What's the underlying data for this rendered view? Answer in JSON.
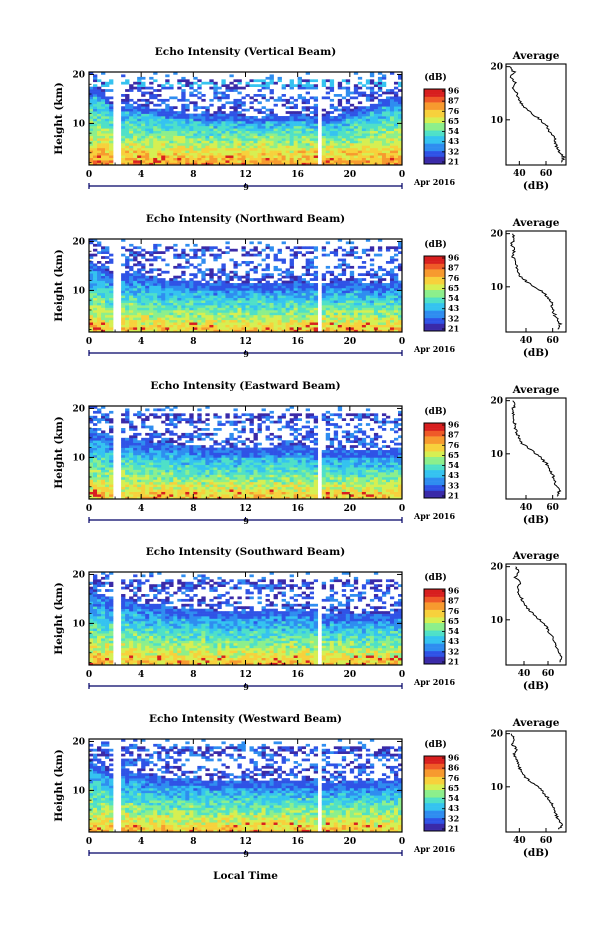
{
  "figure": {
    "xlabel": "Local Time",
    "date_label": "Apr 2016",
    "day_label": "9",
    "ylabel": "Height (km)",
    "colorbar_unit": "(dB)",
    "profile_title": "Average",
    "profile_xlabel": "(dB)"
  },
  "colors": {
    "colormap": [
      "#3a2aa8",
      "#2f53e6",
      "#2f8df0",
      "#35c3f0",
      "#4fe0c8",
      "#8cef8c",
      "#d6ef52",
      "#f7d13c",
      "#f79a2f",
      "#ef5a28",
      "#d81f1f"
    ],
    "axis": "#000000",
    "timeline": "#000066"
  },
  "chart_data": [
    {
      "type": "heatmap",
      "title": "Echo Intensity (Vertical Beam)",
      "xlabel": "Local Time",
      "ylabel": "Height (km)",
      "x_ticks": [
        "0",
        "4",
        "8",
        "12",
        "16",
        "20",
        "0"
      ],
      "y_ticks": [
        "10",
        "20"
      ],
      "xlim": [
        0,
        24
      ],
      "ylim": [
        1.5,
        20.5
      ],
      "colorbar": {
        "label": "(dB)",
        "ticks": [
          "96",
          "87",
          "76",
          "65",
          "54",
          "43",
          "32",
          "21"
        ],
        "range": [
          21,
          96
        ]
      },
      "data_gaps_hours": [
        [
          1.7,
          2.4
        ],
        [
          5.7,
          5.95
        ],
        [
          16.5,
          16.75
        ],
        [
          17.45,
          17.9
        ]
      ],
      "cloud_top_km": [
        17,
        17,
        13,
        14,
        13.5,
        13,
        12.5,
        12.5,
        12,
        11.8,
        11.5,
        12,
        11.5,
        11,
        12,
        11.5,
        12,
        11.5,
        11,
        11.5,
        12.5,
        13.5,
        14,
        15,
        15.5
      ],
      "profile": {
        "title": "Average",
        "xlabel": "(dB)",
        "xticks": [
          "40",
          "60"
        ],
        "yticks": [
          "10",
          "20"
        ],
        "xlim": [
          30,
          75
        ],
        "height_km": [
          2,
          3,
          4,
          5,
          6,
          7,
          8,
          9,
          10,
          11,
          12,
          13,
          14,
          15,
          16,
          17,
          18,
          19,
          20
        ],
        "value_db": [
          72,
          73,
          70,
          68,
          67,
          66,
          62,
          60,
          56,
          50,
          45,
          42,
          40,
          38,
          35,
          37,
          34,
          36,
          33
        ]
      }
    },
    {
      "type": "heatmap",
      "title": "Echo Intensity (Northward Beam)",
      "xlabel": "Local Time",
      "ylabel": "Height (km)",
      "x_ticks": [
        "0",
        "4",
        "8",
        "12",
        "16",
        "20",
        "0"
      ],
      "y_ticks": [
        "10",
        "20"
      ],
      "xlim": [
        0,
        24
      ],
      "ylim": [
        1.5,
        20.5
      ],
      "colorbar": {
        "label": "(dB)",
        "ticks": [
          "96",
          "87",
          "76",
          "65",
          "54",
          "43",
          "32",
          "21"
        ],
        "range": [
          21,
          96
        ]
      },
      "data_gaps_hours": [
        [
          1.7,
          2.4
        ],
        [
          5.7,
          5.95
        ],
        [
          16.5,
          16.75
        ],
        [
          17.45,
          17.9
        ]
      ],
      "cloud_top_km": [
        16,
        15,
        13,
        13.5,
        13,
        12.5,
        12,
        12,
        12,
        11.5,
        11.5,
        11.5,
        11.5,
        11.5,
        11.5,
        11.5,
        11.8,
        11.5,
        11.5,
        11.8,
        12,
        11.5,
        11.5,
        11.5,
        12
      ],
      "profile": {
        "title": "Average",
        "xlabel": "(dB)",
        "xticks": [
          "40",
          "60"
        ],
        "yticks": [
          "10",
          "20"
        ],
        "xlim": [
          25,
          70
        ],
        "height_km": [
          2,
          3,
          4,
          5,
          6,
          7,
          8,
          9,
          10,
          11,
          12,
          13,
          14,
          15,
          16,
          17,
          18,
          19,
          20
        ],
        "value_db": [
          64,
          66,
          63,
          61,
          60,
          59,
          56,
          53,
          47,
          40,
          36,
          34,
          33,
          31,
          30,
          31,
          29,
          31,
          30
        ]
      }
    },
    {
      "type": "heatmap",
      "title": "Echo Intensity (Eastward Beam)",
      "xlabel": "Local Time",
      "ylabel": "Height (km)",
      "x_ticks": [
        "0",
        "4",
        "8",
        "12",
        "16",
        "20",
        "0"
      ],
      "y_ticks": [
        "10",
        "20"
      ],
      "xlim": [
        0,
        24
      ],
      "ylim": [
        1.5,
        20.5
      ],
      "colorbar": {
        "label": "(dB)",
        "ticks": [
          "96",
          "87",
          "76",
          "65",
          "54",
          "43",
          "33",
          "21"
        ],
        "range": [
          21,
          96
        ]
      },
      "data_gaps_hours": [
        [
          1.7,
          2.4
        ],
        [
          5.7,
          5.95
        ],
        [
          16.5,
          16.75
        ],
        [
          17.45,
          17.9
        ]
      ],
      "cloud_top_km": [
        16,
        15,
        14,
        14,
        13.5,
        13,
        13,
        12.5,
        12.5,
        12,
        12,
        12,
        12,
        12,
        12,
        12,
        12.5,
        12,
        11.5,
        11.5,
        11.5,
        11.5,
        11.5,
        11.5,
        12
      ],
      "profile": {
        "title": "Average",
        "xlabel": "(dB)",
        "xticks": [
          "40",
          "60"
        ],
        "yticks": [
          "10",
          "20"
        ],
        "xlim": [
          25,
          70
        ],
        "height_km": [
          2,
          3,
          4,
          5,
          6,
          7,
          8,
          9,
          10,
          11,
          12,
          13,
          14,
          15,
          16,
          17,
          18,
          19,
          20
        ],
        "value_db": [
          64,
          65,
          63,
          61,
          60,
          58,
          56,
          52,
          48,
          42,
          37,
          35,
          33,
          32,
          31,
          31,
          30,
          31,
          30
        ]
      }
    },
    {
      "type": "heatmap",
      "title": "Echo Intensity (Southward Beam)",
      "xlabel": "Local Time",
      "ylabel": "Height (km)",
      "x_ticks": [
        "0",
        "4",
        "8",
        "12",
        "16",
        "20",
        "0"
      ],
      "y_ticks": [
        "10",
        "20"
      ],
      "xlim": [
        0,
        24
      ],
      "ylim": [
        1.5,
        20.5
      ],
      "colorbar": {
        "label": "(dB)",
        "ticks": [
          "96",
          "87",
          "76",
          "65",
          "54",
          "43",
          "32",
          "21"
        ],
        "range": [
          21,
          96
        ]
      },
      "data_gaps_hours": [
        [
          1.7,
          2.4
        ],
        [
          5.7,
          5.95
        ],
        [
          16.5,
          16.75
        ],
        [
          17.45,
          17.9
        ]
      ],
      "cloud_top_km": [
        17,
        16,
        14,
        15,
        14,
        14,
        13.5,
        13,
        13,
        13,
        12.5,
        12.5,
        12.5,
        12.5,
        13,
        12.5,
        13,
        12.5,
        12,
        12,
        12,
        12,
        12,
        12,
        12.5
      ],
      "profile": {
        "title": "Average",
        "xlabel": "(dB)",
        "xticks": [
          "40",
          "60"
        ],
        "yticks": [
          "10",
          "20"
        ],
        "xlim": [
          25,
          75
        ],
        "height_km": [
          2,
          3,
          4,
          5,
          6,
          7,
          8,
          9,
          10,
          11,
          12,
          13,
          14,
          15,
          16,
          17,
          18,
          19,
          20
        ],
        "value_db": [
          70,
          71,
          69,
          67,
          65,
          63,
          60,
          58,
          53,
          48,
          44,
          40,
          38,
          36,
          34,
          37,
          33,
          35,
          33
        ]
      }
    },
    {
      "type": "heatmap",
      "title": "Echo Intensity (Westward Beam)",
      "xlabel": "Local Time",
      "ylabel": "Height (km)",
      "x_ticks": [
        "0",
        "4",
        "8",
        "12",
        "16",
        "20",
        "0"
      ],
      "y_ticks": [
        "10",
        "20"
      ],
      "xlim": [
        0,
        24
      ],
      "ylim": [
        1.5,
        20.5
      ],
      "colorbar": {
        "label": "(dB)",
        "ticks": [
          "96",
          "86",
          "76",
          "65",
          "54",
          "43",
          "32",
          "21"
        ],
        "range": [
          21,
          96
        ]
      },
      "data_gaps_hours": [
        [
          1.7,
          2.4
        ],
        [
          5.7,
          5.95
        ],
        [
          16.5,
          16.75
        ],
        [
          17.45,
          17.9
        ]
      ],
      "cloud_top_km": [
        16,
        15,
        13,
        14,
        13.5,
        13,
        12.5,
        12.5,
        12.5,
        12,
        12,
        12,
        12,
        12,
        12,
        12,
        12,
        12,
        11.5,
        11.5,
        12,
        12,
        12,
        12,
        12.5
      ],
      "profile": {
        "title": "Average",
        "xlabel": "(dB)",
        "xticks": [
          "40",
          "60"
        ],
        "yticks": [
          "10",
          "20"
        ],
        "xlim": [
          30,
          75
        ],
        "height_km": [
          2,
          3,
          4,
          5,
          6,
          7,
          8,
          9,
          10,
          11,
          12,
          13,
          14,
          15,
          16,
          17,
          18,
          19,
          20
        ],
        "value_db": [
          70,
          72,
          69,
          67,
          66,
          64,
          61,
          58,
          54,
          48,
          44,
          41,
          40,
          38,
          36,
          38,
          35,
          36,
          34
        ]
      }
    }
  ]
}
